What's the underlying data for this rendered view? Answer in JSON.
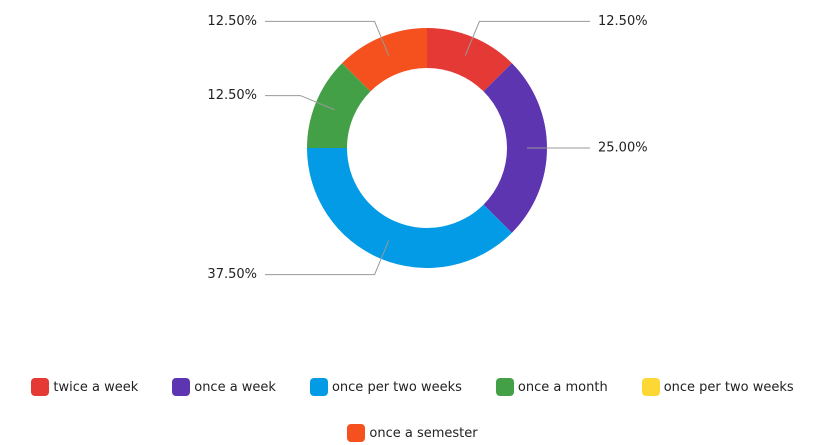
{
  "chart_data": {
    "type": "donut",
    "categories": [
      "twice a week",
      "once a week",
      "once per two weeks",
      "once a month",
      "once per two weeks",
      "once a semester"
    ],
    "values": [
      12.5,
      25,
      37.5,
      12.5,
      0,
      12.5
    ],
    "value_labels": [
      "12.50%",
      "25.00%",
      "37.50%",
      "12.50%",
      null,
      "12.50%"
    ],
    "colors": [
      "#e53935",
      "#5e35b1",
      "#039be5",
      "#43a047",
      "#fdd835",
      "#f4511e"
    ],
    "legend": "bottom"
  }
}
